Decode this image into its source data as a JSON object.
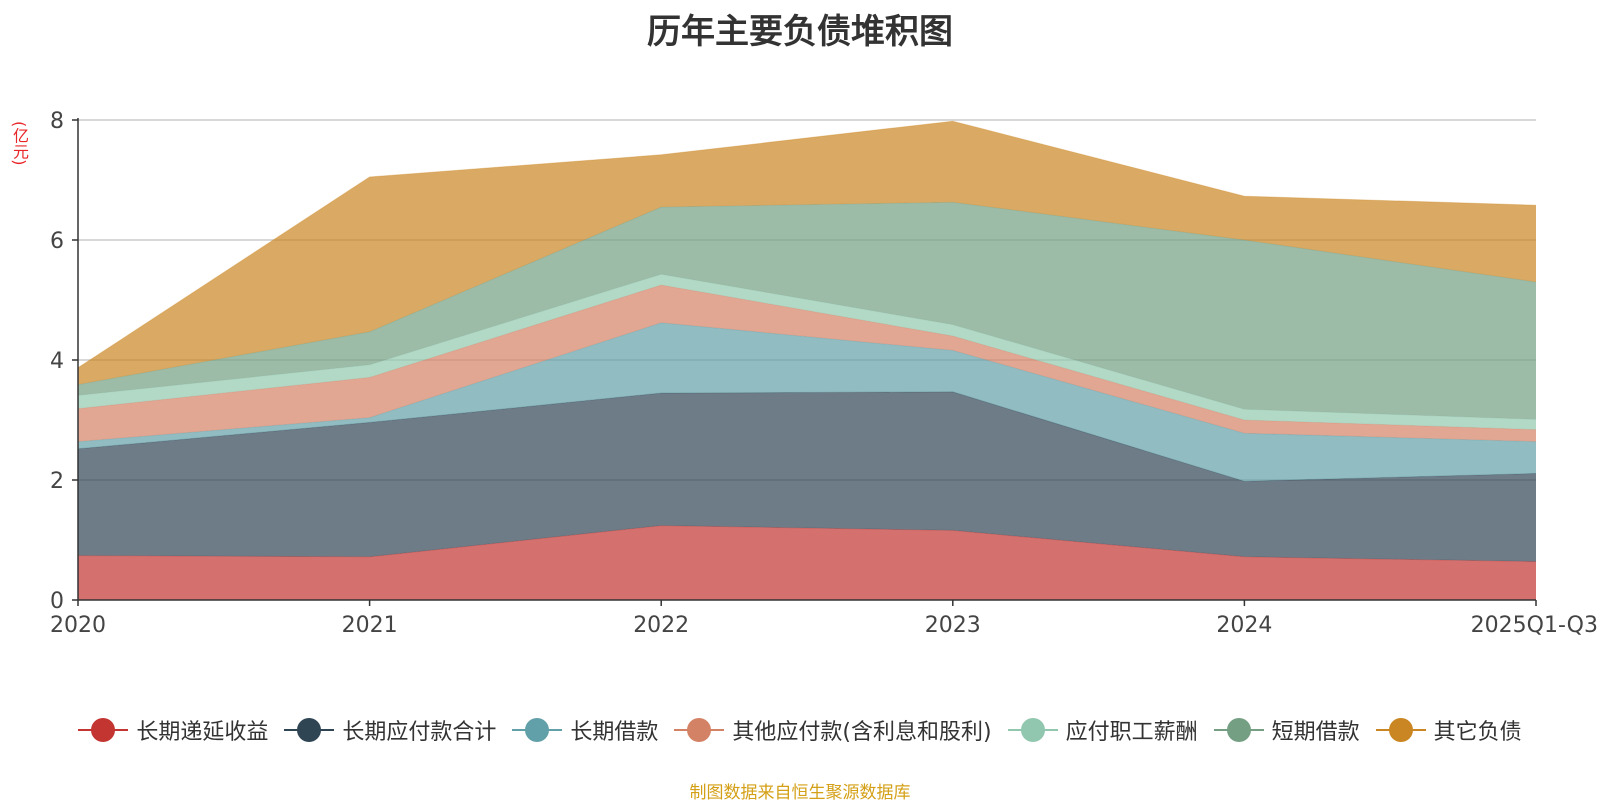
{
  "chart_data": {
    "type": "area",
    "stacked": true,
    "title": "历年主要负债堆积图",
    "ylabel": "(亿元)",
    "xlabel": "",
    "ylim": [
      0,
      8
    ],
    "yticks": [
      0,
      2,
      4,
      6,
      8
    ],
    "categories": [
      "2020",
      "2021",
      "2022",
      "2023",
      "2024",
      "2025Q1-Q3"
    ],
    "grid": true,
    "legend_position": "bottom",
    "series": [
      {
        "name": "长期递延收益",
        "color": "#c23531",
        "values": [
          0.74,
          0.72,
          1.24,
          1.16,
          0.72,
          0.64
        ]
      },
      {
        "name": "长期应付款合计",
        "color": "#2f4554",
        "values": [
          1.78,
          2.24,
          2.21,
          2.31,
          1.26,
          1.47
        ]
      },
      {
        "name": "长期借款",
        "color": "#61a0a8",
        "values": [
          0.12,
          0.08,
          1.17,
          0.69,
          0.8,
          0.53
        ]
      },
      {
        "name": "其他应付款(含利息和股利)",
        "color": "#d48265",
        "values": [
          0.55,
          0.67,
          0.63,
          0.24,
          0.22,
          0.2
        ]
      },
      {
        "name": "应付职工薪酬",
        "color": "#91c7ae",
        "values": [
          0.22,
          0.21,
          0.18,
          0.19,
          0.18,
          0.17
        ]
      },
      {
        "name": "短期借款",
        "color": "#749f83",
        "values": [
          0.18,
          0.55,
          1.12,
          2.04,
          2.82,
          2.29
        ]
      },
      {
        "name": "其它负债",
        "color": "#ca8622",
        "values": [
          0.28,
          2.58,
          0.87,
          1.35,
          0.73,
          1.28
        ]
      }
    ]
  },
  "source_note": "制图数据来自恒生聚源数据库"
}
